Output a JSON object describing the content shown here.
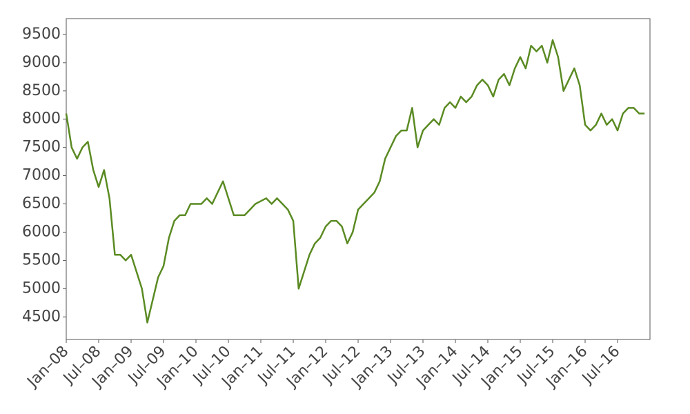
{
  "chart_data": {
    "type": "line",
    "x": [
      "2008-01",
      "2008-02",
      "2008-03",
      "2008-04",
      "2008-05",
      "2008-06",
      "2008-07",
      "2008-08",
      "2008-09",
      "2008-10",
      "2008-11",
      "2008-12",
      "2009-01",
      "2009-02",
      "2009-03",
      "2009-04",
      "2009-05",
      "2009-06",
      "2009-07",
      "2009-08",
      "2009-09",
      "2009-10",
      "2009-11",
      "2009-12",
      "2010-01",
      "2010-02",
      "2010-03",
      "2010-04",
      "2010-05",
      "2010-06",
      "2010-07",
      "2010-08",
      "2010-09",
      "2010-10",
      "2010-11",
      "2010-12",
      "2011-01",
      "2011-02",
      "2011-03",
      "2011-04",
      "2011-05",
      "2011-06",
      "2011-07",
      "2011-08",
      "2011-09",
      "2011-10",
      "2011-11",
      "2011-12",
      "2012-01",
      "2012-02",
      "2012-03",
      "2012-04",
      "2012-05",
      "2012-06",
      "2012-07",
      "2012-08",
      "2012-09",
      "2012-10",
      "2012-11",
      "2012-12",
      "2013-01",
      "2013-02",
      "2013-03",
      "2013-04",
      "2013-05",
      "2013-06",
      "2013-07",
      "2013-08",
      "2013-09",
      "2013-10",
      "2013-11",
      "2013-12",
      "2014-01",
      "2014-02",
      "2014-03",
      "2014-04",
      "2014-05",
      "2014-06",
      "2014-07",
      "2014-08",
      "2014-09",
      "2014-10",
      "2014-11",
      "2014-12",
      "2015-01",
      "2015-02",
      "2015-03",
      "2015-04",
      "2015-05",
      "2015-06",
      "2015-07",
      "2015-08",
      "2015-09",
      "2015-10",
      "2015-11",
      "2015-12",
      "2016-01",
      "2016-02",
      "2016-03",
      "2016-04",
      "2016-05",
      "2016-06",
      "2016-07",
      "2016-08",
      "2016-09",
      "2016-10",
      "2016-11",
      "2016-12"
    ],
    "series": [
      {
        "color": "#5a8a22",
        "values": [
          8100,
          7500,
          7300,
          7500,
          7600,
          7100,
          6800,
          7100,
          6600,
          5600,
          5600,
          5500,
          5600,
          5300,
          5000,
          4400,
          4800,
          5200,
          5400,
          5900,
          6200,
          6300,
          6300,
          6500,
          6500,
          6500,
          6600,
          6500,
          6700,
          6900,
          6600,
          6300,
          6300,
          6300,
          6400,
          6500,
          6550,
          6600,
          6500,
          6600,
          6500,
          6400,
          6200,
          5000,
          5300,
          5600,
          5800,
          5900,
          6100,
          6200,
          6200,
          6100,
          5800,
          6000,
          6400,
          6500,
          6600,
          6700,
          6900,
          7300,
          7500,
          7700,
          7800,
          7800,
          8200,
          7500,
          7800,
          7900,
          8000,
          7900,
          8200,
          8300,
          8200,
          8400,
          8300,
          8400,
          8600,
          8700,
          8600,
          8400,
          8700,
          8800,
          8600,
          8900,
          9100,
          8900,
          9300,
          9200,
          9300,
          9000,
          9400,
          9100,
          8500,
          8700,
          8900,
          8600,
          7900,
          7800,
          7900,
          8100,
          7900,
          8000,
          7800,
          8100,
          8200,
          8200,
          8100,
          8100
        ]
      }
    ],
    "xlim": [
      "2008-01",
      "2017-01"
    ],
    "xticks": [
      {
        "value": "2008-01",
        "label": "Jan–08"
      },
      {
        "value": "2008-07",
        "label": "Jul–08"
      },
      {
        "value": "2009-01",
        "label": "Jan–09"
      },
      {
        "value": "2009-07",
        "label": "Jul–09"
      },
      {
        "value": "2010-01",
        "label": "Jan–10"
      },
      {
        "value": "2010-07",
        "label": "Jul–10"
      },
      {
        "value": "2011-01",
        "label": "Jan–11"
      },
      {
        "value": "2011-07",
        "label": "Jul–11"
      },
      {
        "value": "2012-01",
        "label": "Jan–12"
      },
      {
        "value": "2012-07",
        "label": "Jul–12"
      },
      {
        "value": "2013-01",
        "label": "Jan–13"
      },
      {
        "value": "2013-07",
        "label": "Jul–13"
      },
      {
        "value": "2014-01",
        "label": "Jan–14"
      },
      {
        "value": "2014-07",
        "label": "Jul–14"
      },
      {
        "value": "2015-01",
        "label": "Jan–15"
      },
      {
        "value": "2015-07",
        "label": "Jul–15"
      },
      {
        "value": "2016-01",
        "label": "Jan–16"
      },
      {
        "value": "2016-07",
        "label": "Jul–16"
      }
    ],
    "ylim": [
      4100,
      9780
    ],
    "yticks": [
      4500,
      5000,
      5500,
      6000,
      6500,
      7000,
      7500,
      8000,
      8500,
      9000,
      9500
    ],
    "grid": false
  }
}
